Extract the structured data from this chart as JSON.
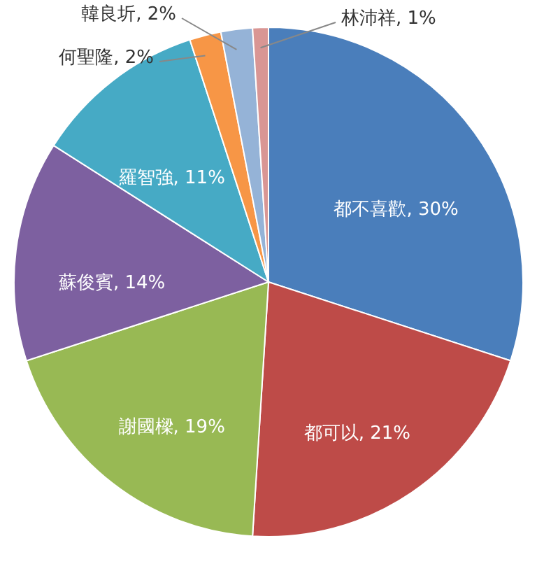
{
  "chart_data": {
    "type": "pie",
    "categories": [
      "都不喜歡",
      "都可以",
      "謝國樑",
      "蘇俊賓",
      "羅智強",
      "何聖隆",
      "韓良圻",
      "林沛祥"
    ],
    "values": [
      30,
      21,
      19,
      14,
      11,
      2,
      2,
      1
    ],
    "colors": [
      "#4a7ebb",
      "#be4b48",
      "#98b954",
      "#7d60a0",
      "#46aac5",
      "#f79646",
      "#95b3d7",
      "#d99694"
    ],
    "value_labels": [
      ", 30%",
      ", 21%",
      ", 19%",
      ", 14%",
      ", 11%",
      ", 2%",
      ", 2%",
      ", 1%"
    ]
  }
}
